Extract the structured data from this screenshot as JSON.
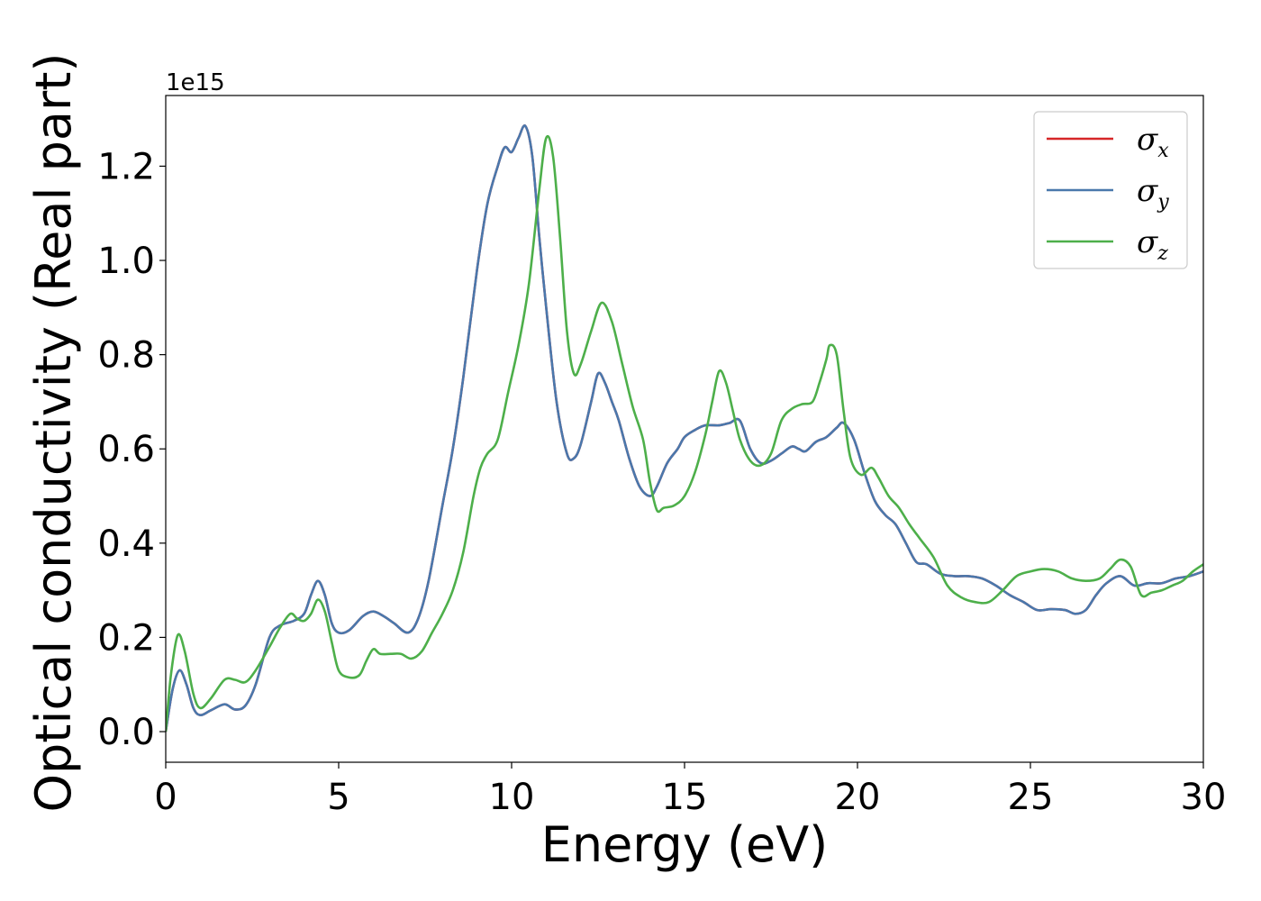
{
  "chart_data": {
    "type": "line",
    "title": "",
    "xlabel": "Energy (eV)",
    "ylabel": "Optical conductivity (Real part)",
    "y_offset_label": "1e15",
    "xlim": [
      0,
      30
    ],
    "ylim": [
      -0.065,
      1.35
    ],
    "xticks": [
      0,
      5,
      10,
      15,
      20,
      25,
      30
    ],
    "xtick_labels": [
      "0",
      "5",
      "10",
      "15",
      "20",
      "25",
      "30"
    ],
    "yticks": [
      0.0,
      0.2,
      0.4,
      0.6,
      0.8,
      1.0,
      1.2
    ],
    "ytick_labels": [
      "0.0",
      "0.2",
      "0.4",
      "0.6",
      "0.8",
      "1.0",
      "1.2"
    ],
    "grid": false,
    "legend_position": "top-right",
    "series": [
      {
        "name": "σ",
        "subscript": "x",
        "color": "#d62728",
        "x": [
          0,
          0.2,
          0.4,
          0.6,
          0.8,
          1.0,
          1.3,
          1.7,
          2.0,
          2.3,
          2.6,
          3.0,
          3.3,
          3.7,
          4.0,
          4.2,
          4.4,
          4.6,
          4.8,
          5.0,
          5.3,
          5.7,
          6.0,
          6.3,
          6.6,
          7.0,
          7.3,
          7.6,
          8.0,
          8.3,
          8.6,
          9.0,
          9.3,
          9.6,
          9.8,
          10.0,
          10.2,
          10.4,
          10.6,
          10.8,
          11.0,
          11.3,
          11.6,
          11.8,
          12.0,
          12.3,
          12.5,
          12.7,
          12.9,
          13.1,
          13.4,
          13.7,
          14.0,
          14.2,
          14.5,
          14.8,
          15.0,
          15.3,
          15.6,
          16.0,
          16.3,
          16.6,
          16.9,
          17.2,
          17.5,
          17.8,
          18.1,
          18.3,
          18.5,
          18.8,
          19.1,
          19.4,
          19.6,
          19.9,
          20.2,
          20.5,
          20.8,
          21.1,
          21.4,
          21.7,
          22.0,
          22.4,
          22.8,
          23.2,
          23.6,
          24.0,
          24.4,
          24.8,
          25.2,
          25.6,
          26.0,
          26.3,
          26.6,
          26.9,
          27.2,
          27.6,
          28.0,
          28.4,
          28.8,
          29.2,
          29.6,
          30.0
        ],
        "values": [
          0.0,
          0.09,
          0.13,
          0.1,
          0.05,
          0.035,
          0.045,
          0.058,
          0.047,
          0.055,
          0.1,
          0.2,
          0.225,
          0.235,
          0.25,
          0.29,
          0.32,
          0.29,
          0.23,
          0.21,
          0.215,
          0.245,
          0.255,
          0.245,
          0.23,
          0.21,
          0.24,
          0.32,
          0.48,
          0.6,
          0.75,
          0.98,
          1.12,
          1.2,
          1.24,
          1.23,
          1.26,
          1.285,
          1.22,
          1.05,
          0.9,
          0.7,
          0.59,
          0.58,
          0.61,
          0.7,
          0.76,
          0.74,
          0.7,
          0.66,
          0.58,
          0.52,
          0.5,
          0.52,
          0.57,
          0.6,
          0.625,
          0.64,
          0.65,
          0.65,
          0.655,
          0.66,
          0.6,
          0.57,
          0.575,
          0.59,
          0.605,
          0.6,
          0.595,
          0.615,
          0.625,
          0.645,
          0.655,
          0.62,
          0.55,
          0.49,
          0.46,
          0.44,
          0.4,
          0.36,
          0.355,
          0.335,
          0.33,
          0.33,
          0.325,
          0.31,
          0.29,
          0.275,
          0.258,
          0.26,
          0.258,
          0.25,
          0.258,
          0.29,
          0.315,
          0.33,
          0.31,
          0.315,
          0.315,
          0.325,
          0.33,
          0.34
        ]
      },
      {
        "name": "σ",
        "subscript": "y",
        "color": "#4a78ac",
        "x": [
          0,
          0.2,
          0.4,
          0.6,
          0.8,
          1.0,
          1.3,
          1.7,
          2.0,
          2.3,
          2.6,
          3.0,
          3.3,
          3.7,
          4.0,
          4.2,
          4.4,
          4.6,
          4.8,
          5.0,
          5.3,
          5.7,
          6.0,
          6.3,
          6.6,
          7.0,
          7.3,
          7.6,
          8.0,
          8.3,
          8.6,
          9.0,
          9.3,
          9.6,
          9.8,
          10.0,
          10.2,
          10.4,
          10.6,
          10.8,
          11.0,
          11.3,
          11.6,
          11.8,
          12.0,
          12.3,
          12.5,
          12.7,
          12.9,
          13.1,
          13.4,
          13.7,
          14.0,
          14.2,
          14.5,
          14.8,
          15.0,
          15.3,
          15.6,
          16.0,
          16.3,
          16.6,
          16.9,
          17.2,
          17.5,
          17.8,
          18.1,
          18.3,
          18.5,
          18.8,
          19.1,
          19.4,
          19.6,
          19.9,
          20.2,
          20.5,
          20.8,
          21.1,
          21.4,
          21.7,
          22.0,
          22.4,
          22.8,
          23.2,
          23.6,
          24.0,
          24.4,
          24.8,
          25.2,
          25.6,
          26.0,
          26.3,
          26.6,
          26.9,
          27.2,
          27.6,
          28.0,
          28.4,
          28.8,
          29.2,
          29.6,
          30.0
        ],
        "values": [
          0.0,
          0.09,
          0.13,
          0.1,
          0.05,
          0.035,
          0.045,
          0.058,
          0.047,
          0.055,
          0.1,
          0.2,
          0.225,
          0.235,
          0.25,
          0.29,
          0.32,
          0.29,
          0.23,
          0.21,
          0.215,
          0.245,
          0.255,
          0.245,
          0.23,
          0.21,
          0.24,
          0.32,
          0.48,
          0.6,
          0.75,
          0.98,
          1.12,
          1.2,
          1.24,
          1.23,
          1.26,
          1.285,
          1.22,
          1.05,
          0.9,
          0.7,
          0.59,
          0.58,
          0.61,
          0.7,
          0.76,
          0.74,
          0.7,
          0.66,
          0.58,
          0.52,
          0.5,
          0.52,
          0.57,
          0.6,
          0.625,
          0.64,
          0.65,
          0.65,
          0.655,
          0.66,
          0.6,
          0.57,
          0.575,
          0.59,
          0.605,
          0.6,
          0.595,
          0.615,
          0.625,
          0.645,
          0.655,
          0.62,
          0.55,
          0.49,
          0.46,
          0.44,
          0.4,
          0.36,
          0.355,
          0.335,
          0.33,
          0.33,
          0.325,
          0.31,
          0.29,
          0.275,
          0.258,
          0.26,
          0.258,
          0.25,
          0.258,
          0.29,
          0.315,
          0.33,
          0.31,
          0.315,
          0.315,
          0.325,
          0.33,
          0.34
        ]
      },
      {
        "name": "σ",
        "subscript": "z",
        "color": "#4daf4a",
        "x": [
          0,
          0.15,
          0.35,
          0.55,
          0.8,
          1.0,
          1.3,
          1.7,
          2.0,
          2.3,
          2.6,
          3.0,
          3.3,
          3.6,
          3.8,
          4.0,
          4.2,
          4.4,
          4.6,
          4.8,
          5.0,
          5.3,
          5.6,
          5.8,
          6.0,
          6.2,
          6.5,
          6.8,
          7.1,
          7.4,
          7.7,
          8.0,
          8.3,
          8.6,
          8.9,
          9.1,
          9.3,
          9.6,
          9.9,
          10.2,
          10.5,
          10.8,
          11.0,
          11.2,
          11.4,
          11.6,
          11.8,
          12.0,
          12.3,
          12.6,
          12.9,
          13.2,
          13.5,
          13.8,
          14.0,
          14.2,
          14.4,
          14.7,
          15.0,
          15.3,
          15.6,
          15.8,
          16.0,
          16.2,
          16.4,
          16.6,
          16.9,
          17.2,
          17.5,
          17.8,
          18.1,
          18.4,
          18.7,
          18.9,
          19.1,
          19.2,
          19.4,
          19.6,
          19.8,
          20.1,
          20.4,
          20.6,
          20.9,
          21.2,
          21.5,
          21.8,
          22.2,
          22.6,
          23.0,
          23.4,
          23.8,
          24.2,
          24.6,
          25.0,
          25.4,
          25.8,
          26.2,
          26.6,
          27.0,
          27.3,
          27.6,
          27.9,
          28.2,
          28.5,
          28.8,
          29.1,
          29.4,
          29.7,
          30.0
        ],
        "values": [
          0.0,
          0.12,
          0.205,
          0.17,
          0.08,
          0.05,
          0.07,
          0.11,
          0.11,
          0.105,
          0.13,
          0.18,
          0.22,
          0.25,
          0.24,
          0.235,
          0.25,
          0.28,
          0.255,
          0.19,
          0.13,
          0.115,
          0.12,
          0.15,
          0.175,
          0.165,
          0.165,
          0.165,
          0.155,
          0.17,
          0.21,
          0.25,
          0.3,
          0.38,
          0.5,
          0.56,
          0.59,
          0.62,
          0.72,
          0.82,
          0.95,
          1.15,
          1.26,
          1.22,
          1.05,
          0.85,
          0.76,
          0.78,
          0.85,
          0.91,
          0.87,
          0.78,
          0.69,
          0.62,
          0.53,
          0.47,
          0.475,
          0.48,
          0.5,
          0.55,
          0.63,
          0.7,
          0.765,
          0.74,
          0.68,
          0.62,
          0.575,
          0.565,
          0.59,
          0.66,
          0.685,
          0.695,
          0.7,
          0.74,
          0.79,
          0.82,
          0.8,
          0.68,
          0.58,
          0.545,
          0.56,
          0.54,
          0.5,
          0.475,
          0.44,
          0.41,
          0.37,
          0.31,
          0.285,
          0.275,
          0.275,
          0.3,
          0.33,
          0.34,
          0.345,
          0.34,
          0.325,
          0.32,
          0.325,
          0.345,
          0.365,
          0.35,
          0.29,
          0.295,
          0.3,
          0.31,
          0.32,
          0.34,
          0.355
        ]
      }
    ]
  }
}
